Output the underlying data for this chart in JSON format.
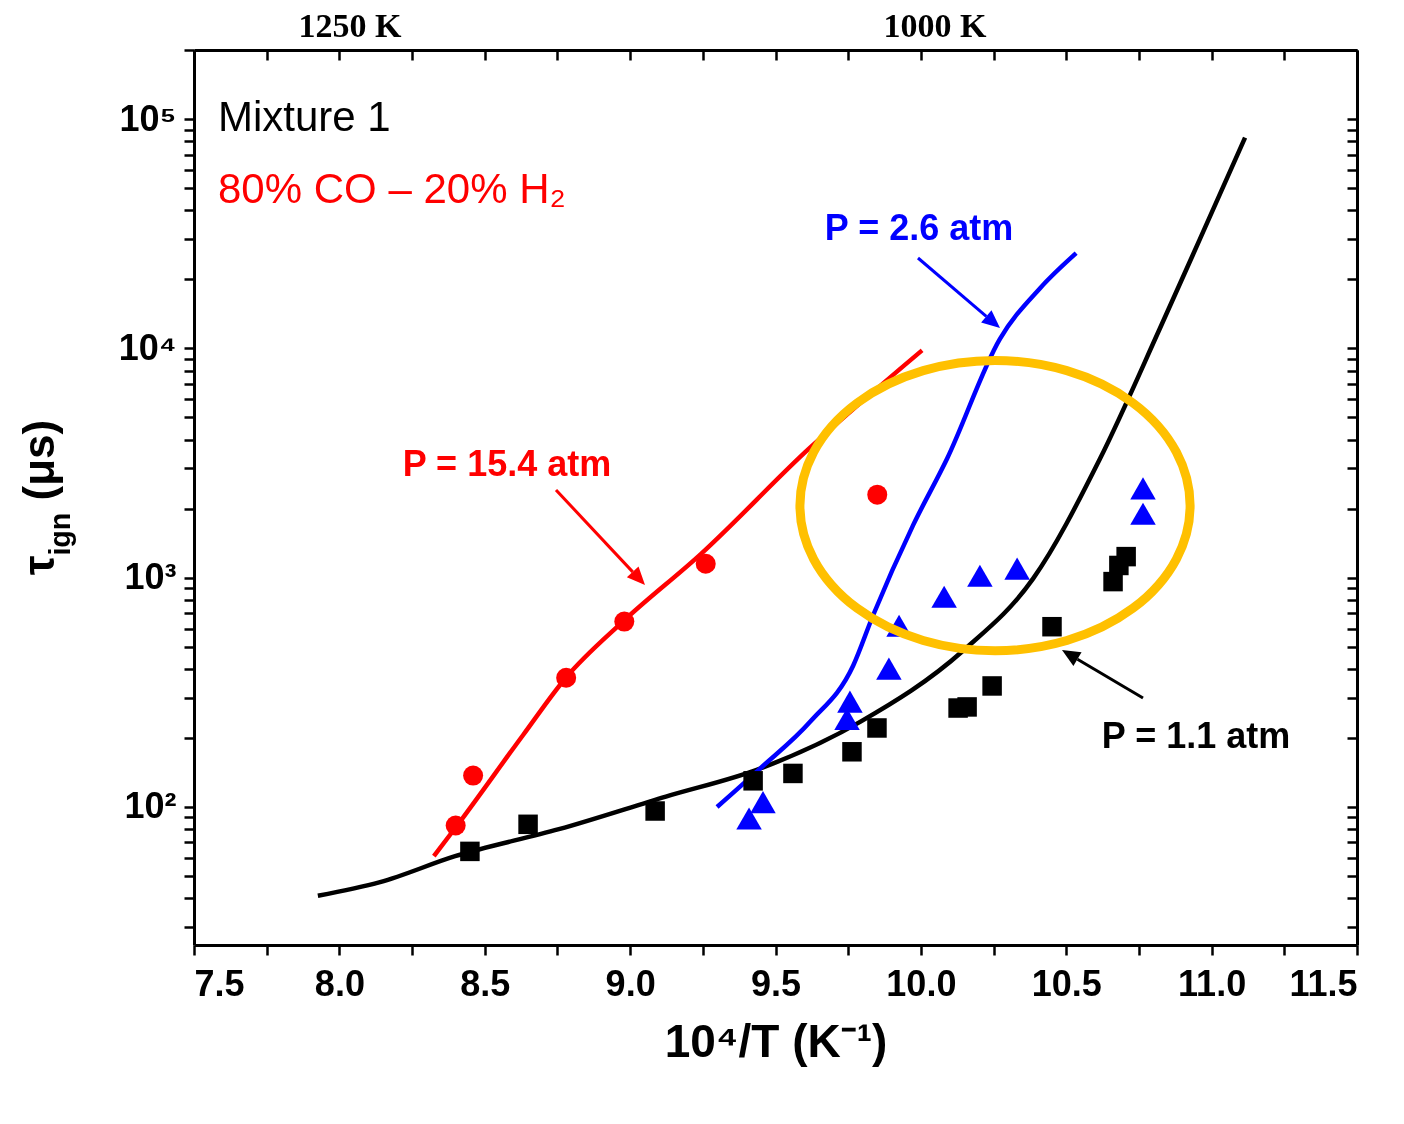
{
  "chart_data": {
    "type": "scatter",
    "xlabel": "10⁴/T (K⁻¹)",
    "ylabel": "τ$_{ign}$ (μs)",
    "log": "y",
    "grid": false,
    "xlim": [
      7.5,
      11.5
    ],
    "ylim": [
      25,
      200000
    ],
    "xticks": [
      {
        "value": 7.5,
        "label": "7.5"
      },
      {
        "value": 7.75,
        "label": null
      },
      {
        "value": 8,
        "label": "8.0"
      },
      {
        "value": 8.25,
        "label": null
      },
      {
        "value": 8.5,
        "label": "8.5"
      },
      {
        "value": 8.75,
        "label": null
      },
      {
        "value": 9,
        "label": "9.0"
      },
      {
        "value": 9.25,
        "label": null
      },
      {
        "value": 9.5,
        "label": "9.5"
      },
      {
        "value": 9.75,
        "label": null
      },
      {
        "value": 10,
        "label": "10.0"
      },
      {
        "value": 10.25,
        "label": null
      },
      {
        "value": 10.5,
        "label": "10.5"
      },
      {
        "value": 10.75,
        "label": null
      },
      {
        "value": 11,
        "label": "11.0"
      },
      {
        "value": 11.25,
        "label": null
      },
      {
        "value": 11.5,
        "label": "11.5"
      }
    ],
    "yticks": [
      {
        "value": 30,
        "label": null
      },
      {
        "value": 40,
        "label": null
      },
      {
        "value": 50,
        "label": null
      },
      {
        "value": 60,
        "label": null
      },
      {
        "value": 70,
        "label": null
      },
      {
        "value": 80,
        "label": null
      },
      {
        "value": 90,
        "label": null
      },
      {
        "value": 100,
        "label": "10²"
      },
      {
        "value": 200,
        "label": null
      },
      {
        "value": 300,
        "label": null
      },
      {
        "value": 400,
        "label": null
      },
      {
        "value": 500,
        "label": null
      },
      {
        "value": 600,
        "label": null
      },
      {
        "value": 700,
        "label": null
      },
      {
        "value": 800,
        "label": null
      },
      {
        "value": 900,
        "label": null
      },
      {
        "value": 1000,
        "label": "10³"
      },
      {
        "value": 2000,
        "label": null
      },
      {
        "value": 3000,
        "label": null
      },
      {
        "value": 4000,
        "label": null
      },
      {
        "value": 5000,
        "label": null
      },
      {
        "value": 6000,
        "label": null
      },
      {
        "value": 7000,
        "label": null
      },
      {
        "value": 8000,
        "label": null
      },
      {
        "value": 9000,
        "label": null
      },
      {
        "value": 10000,
        "label": "10⁴"
      },
      {
        "value": 20000,
        "label": null
      },
      {
        "value": 30000,
        "label": null
      },
      {
        "value": 40000,
        "label": null
      },
      {
        "value": 50000,
        "label": null
      },
      {
        "value": 60000,
        "label": null
      },
      {
        "value": 70000,
        "label": null
      },
      {
        "value": 80000,
        "label": null
      },
      {
        "value": 90000,
        "label": null
      },
      {
        "value": 100000,
        "label": "10⁵"
      },
      {
        "value": 200000,
        "label": null
      }
    ],
    "series": [
      {
        "type": "line",
        "line_style": "solid",
        "color": "#ff0000",
        "x": [
          8.325,
          8.405,
          8.632,
          8.779,
          8.975,
          9.244,
          9.615,
          10.004
        ],
        "values": [
          61,
          83,
          206,
          366,
          643,
          1270,
          3650,
          9800
        ]
      },
      {
        "type": "line",
        "line_style": "solid",
        "color": "#000000",
        "x": [
          7.926,
          8.14,
          8.398,
          8.755,
          9.123,
          9.447,
          9.791,
          10.145,
          10.386,
          10.616,
          10.822,
          10.96,
          11.115
        ],
        "values": [
          41,
          47,
          61,
          80,
          111,
          147,
          235,
          480,
          990,
          3300,
          12200,
          30000,
          83000
        ]
      },
      {
        "type": "line",
        "line_style": "solid",
        "color": "#0000ff",
        "x": [
          9.299,
          9.447,
          9.619,
          9.767,
          9.835,
          9.973,
          10.09,
          10.272,
          10.41,
          10.534
        ],
        "values": [
          100,
          147,
          235,
          413,
          682,
          1690,
          3300,
          11000,
          18300,
          26000
        ]
      },
      {
        "marker": "circle",
        "color": "#ff0000",
        "x": [
          8.4,
          8.46,
          8.78,
          8.98,
          9.26,
          9.85
        ],
        "values": [
          83,
          137,
          366,
          643,
          1150,
          2300
        ]
      },
      {
        "marker": "square",
        "color": "#000000",
        "x": [
          8.449,
          8.649,
          9.086,
          9.423,
          9.56,
          9.763,
          9.849,
          10.128,
          10.159,
          10.245,
          10.451,
          10.661,
          10.681,
          10.706
        ],
        "values": [
          64,
          84,
          96,
          130,
          140,
          174,
          221,
          270,
          273,
          337,
          611,
          961,
          1130,
          1235
        ]
      },
      {
        "marker": "triangle",
        "color": "#0000ff",
        "x": [
          9.409,
          9.457,
          9.746,
          9.756,
          9.89,
          9.925,
          10.08,
          10.203,
          10.331,
          10.764,
          10.764
        ],
        "values": [
          89,
          105,
          242,
          288,
          401,
          617,
          826,
          1020,
          1095,
          1900,
          2450
        ]
      }
    ],
    "annotations": [
      "Mixture 1",
      "80% CO – 20% H₂",
      "P = 2.6 atm",
      "P = 15.4 atm",
      "P = 1.1 atm",
      "1250 K",
      "1000 K"
    ]
  }
}
